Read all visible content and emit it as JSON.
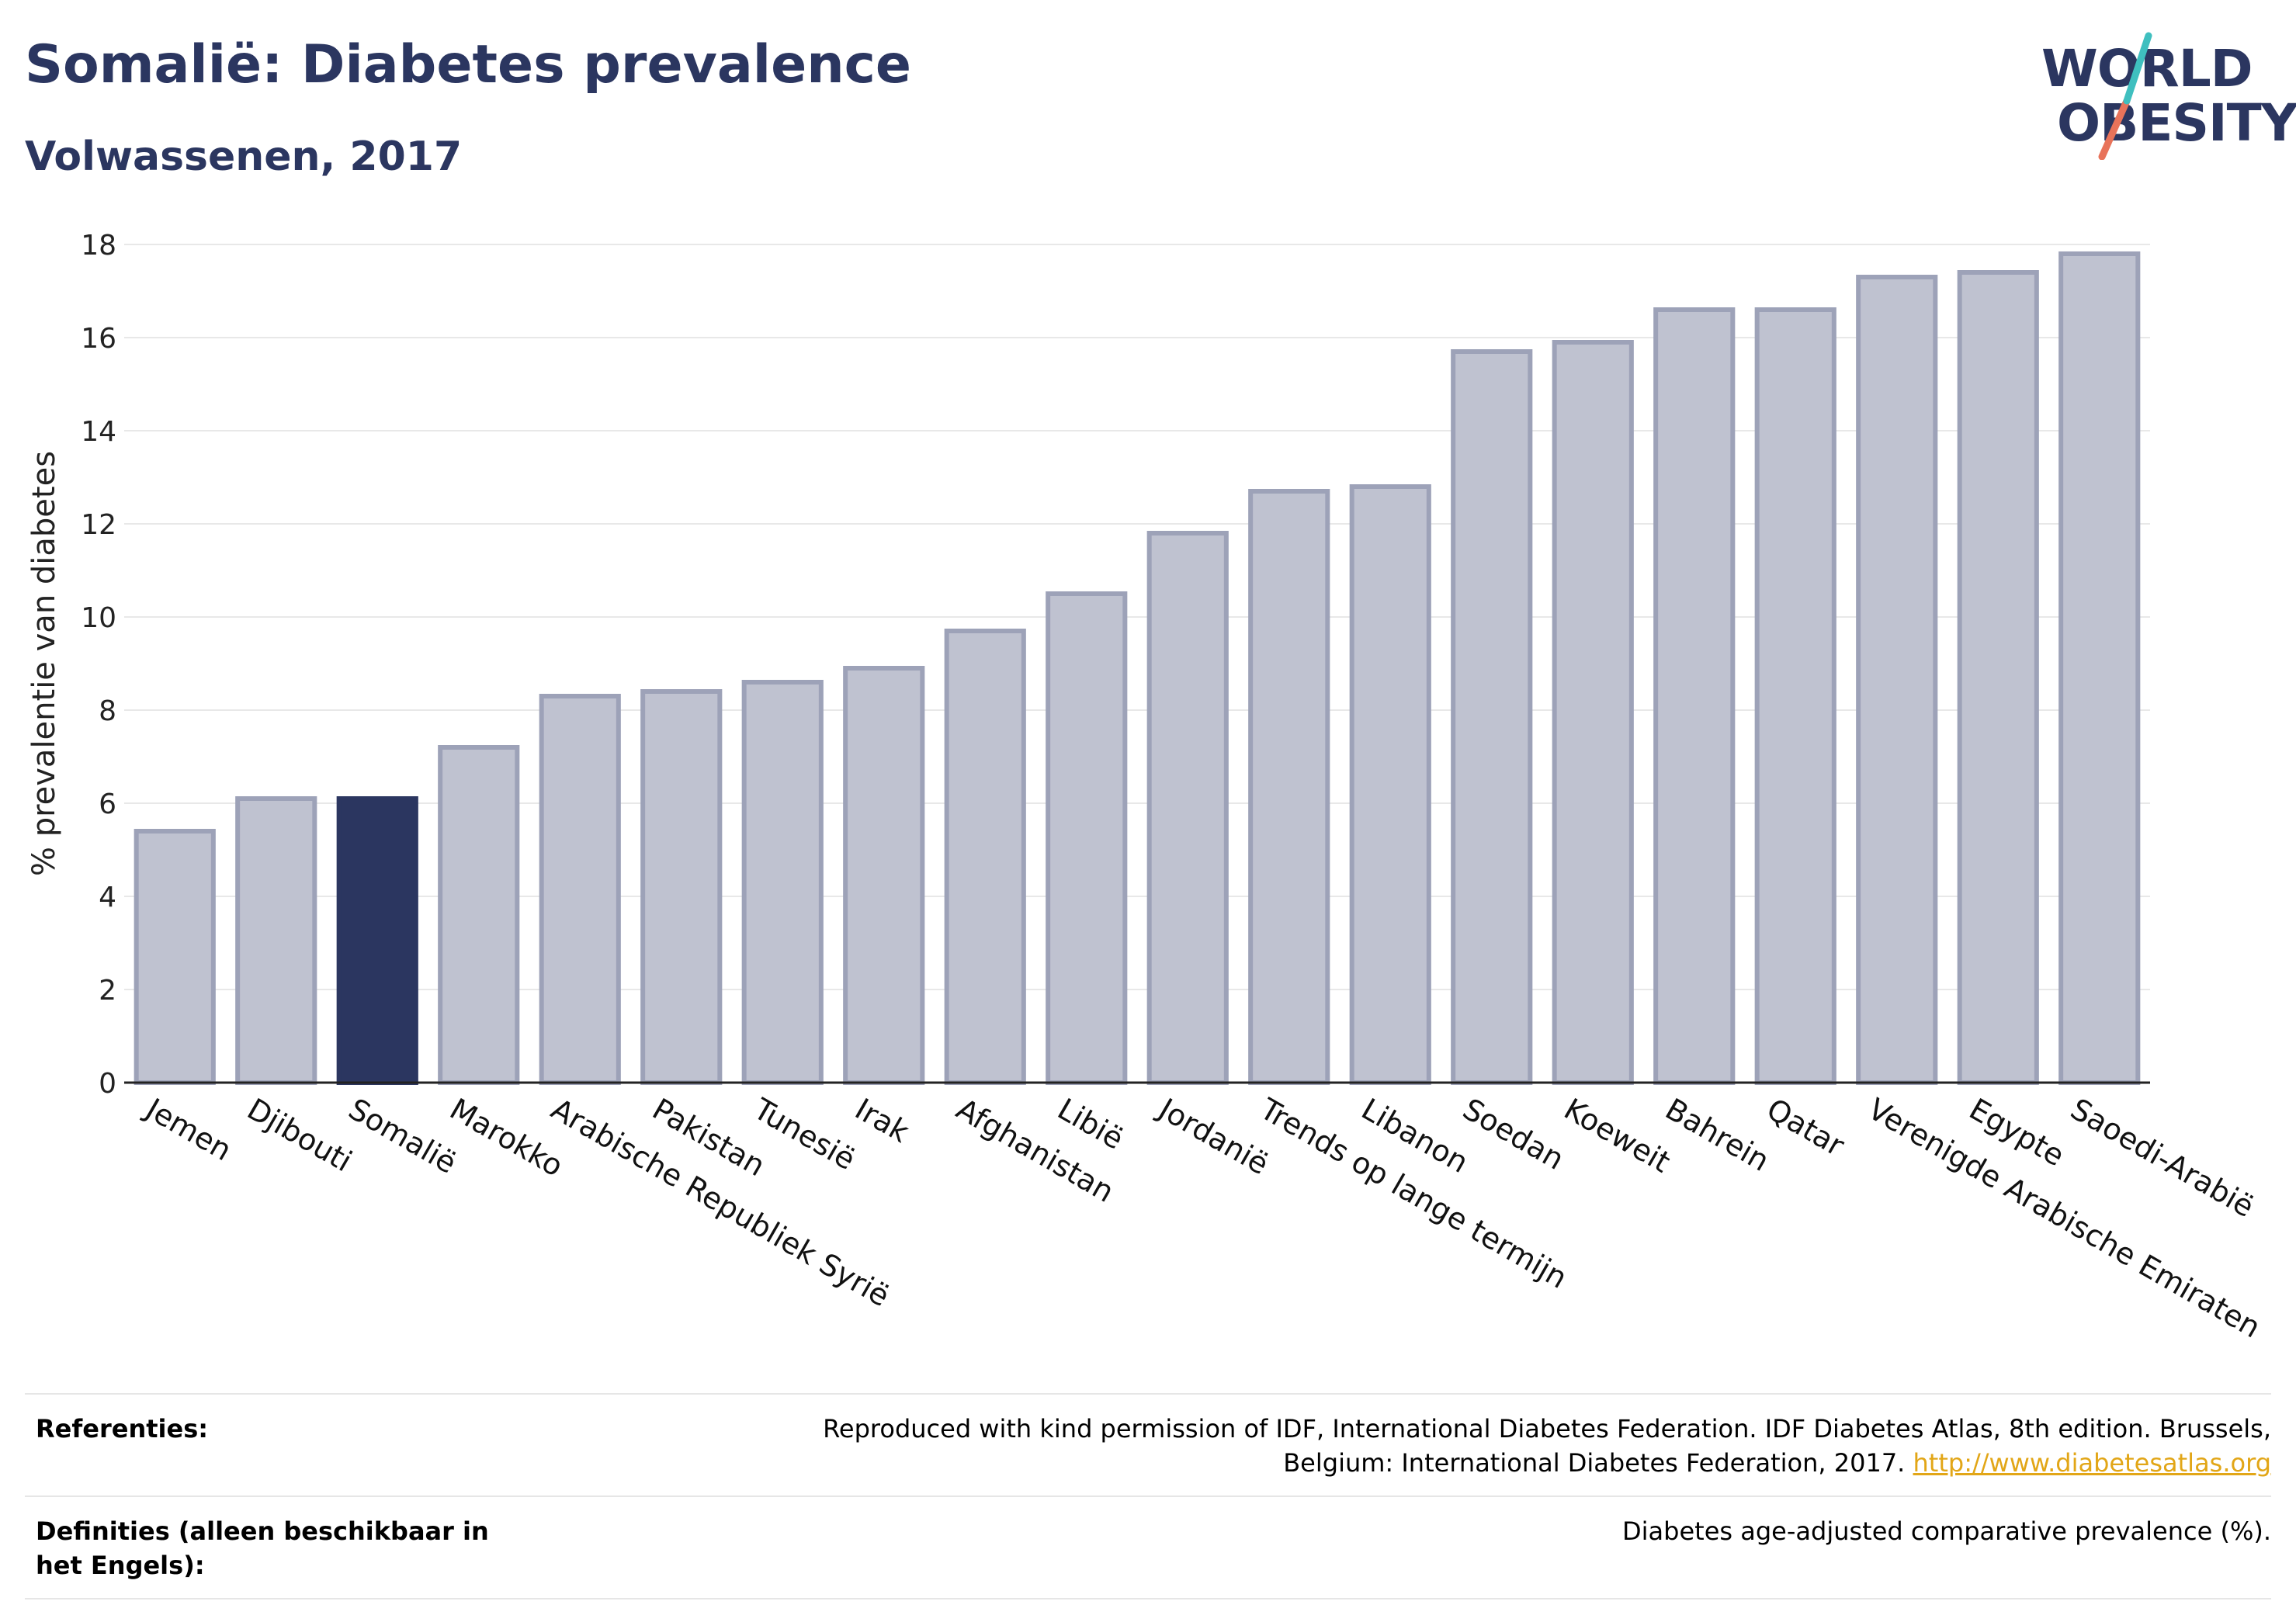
{
  "header": {
    "title": "Somalië: Diabetes prevalence",
    "subtitle": "Volwassenen, 2017"
  },
  "logo": {
    "line1": "WORLD",
    "line2": "OBESITY"
  },
  "chart_data": {
    "type": "bar",
    "ylabel": "% prevalentie van diabetes",
    "ylim": [
      0,
      18
    ],
    "yticks": [
      0,
      2,
      4,
      6,
      8,
      10,
      12,
      14,
      16,
      18
    ],
    "grid": true,
    "categories": [
      "Jemen",
      "Djibouti",
      "Somalië",
      "Marokko",
      "Arabische Republiek Syrië",
      "Pakistan",
      "Tunesië",
      "Irak",
      "Afghanistan",
      "Libië",
      "Jordanië",
      "Trends op lange termijn",
      "Libanon",
      "Soedan",
      "Koeweit",
      "Bahrein",
      "Qatar",
      "Verenigde Arabische Emiraten",
      "Egypte",
      "Saoedi-Arabië"
    ],
    "values": [
      5.4,
      6.1,
      6.1,
      7.2,
      8.3,
      8.4,
      8.6,
      8.9,
      9.7,
      10.5,
      11.8,
      12.7,
      12.8,
      15.7,
      15.9,
      16.6,
      16.6,
      17.3,
      17.4,
      17.8
    ],
    "highlight": "Somalië",
    "colors": {
      "bar": "#bfc2d0",
      "bar_border": "#9da2b8",
      "highlight": "#2b3660",
      "grid": "#e8e8e8"
    }
  },
  "references": {
    "label": "Referenties:",
    "text": "Reproduced with kind permission of IDF, International Diabetes Federation. IDF Diabetes Atlas, 8th edition. Brussels, Belgium: International Diabetes Federation, 2017.",
    "link": "http://www.diabetesatlas.org"
  },
  "definitions": {
    "label": "Definities (alleen beschikbaar in het Engels):",
    "text": "Diabetes age-adjusted comparative prevalence (%)."
  }
}
